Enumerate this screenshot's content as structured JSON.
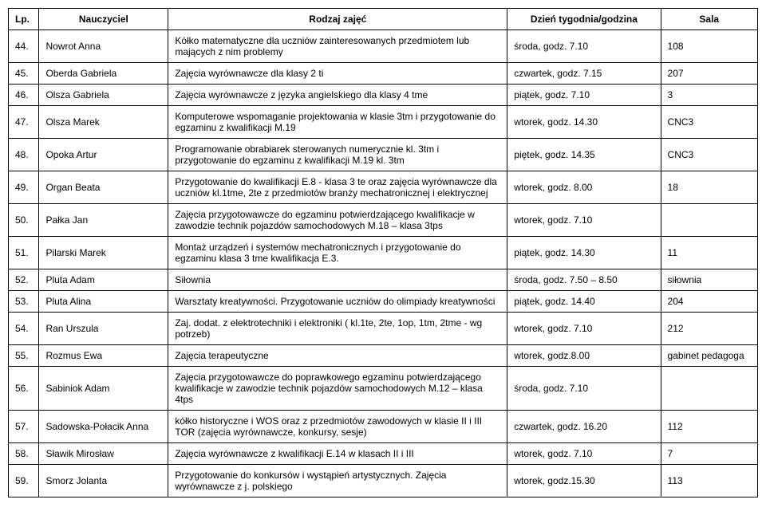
{
  "table": {
    "headers": {
      "lp": "Lp.",
      "teacher": "Nauczyciel",
      "subject": "Rodzaj zajęć",
      "day": "Dzień tygodnia/godzina",
      "room": "Sala"
    },
    "rows": [
      {
        "lp": "44.",
        "teacher": "Nowrot Anna",
        "subject": "Kółko matematyczne dla uczniów zainteresowanych przedmiotem lub mających z nim problemy",
        "day": "środa, godz. 7.10",
        "room": "108"
      },
      {
        "lp": "45.",
        "teacher": "Oberda Gabriela",
        "subject": "Zajęcia  wyrównawcze dla klasy 2 ti",
        "day": "czwartek, godz. 7.15",
        "room": "207"
      },
      {
        "lp": "46.",
        "teacher": "Olsza Gabriela",
        "subject": "Zajęcia  wyrównawcze z języka angielskiego dla klasy 4 tme",
        "day": "piątek, godz. 7.10",
        "room": "3"
      },
      {
        "lp": "47.",
        "teacher": "Olsza Marek",
        "subject": "Komputerowe wspomaganie projektowania w klasie 3tm i przygotowanie do egzaminu z kwalifikacji M.19",
        "day": "wtorek, godz. 14.30",
        "room": "CNC3"
      },
      {
        "lp": "48.",
        "teacher": "Opoka Artur",
        "subject": "Programowanie obrabiarek sterowanych numerycznie kl. 3tm i przygotowanie do egzaminu z kwalifikacji M.19 kl. 3tm",
        "day": "piętek, godz. 14.35",
        "room": "CNC3"
      },
      {
        "lp": "49.",
        "teacher": "Organ Beata",
        "subject": "Przygotowanie do kwalifikacji E.8 -  klasa  3 te oraz zajęcia wyrównawcze dla uczniów kl.1tme, 2te z przedmiotów branży mechatronicznej i elektrycznej",
        "day": "wtorek, godz. 8.00",
        "room": "18"
      },
      {
        "lp": "50.",
        "teacher": "Pałka Jan",
        "subject": "Zajęcia przygotowawcze do egzaminu potwierdzającego kwalifikacje w zawodzie technik pojazdów samochodowych M.18 – klasa 3tps",
        "day": "wtorek, godz. 7.10",
        "room": ""
      },
      {
        "lp": "51.",
        "teacher": "Pilarski Marek",
        "subject": "Montaż urządzeń i systemów mechatronicznych i przygotowanie do egzaminu klasa 3 tme kwalifikacja E.3.",
        "day": "piątek, godz. 14.30",
        "room": "11"
      },
      {
        "lp": "52.",
        "teacher": "Pluta Adam",
        "subject": "Siłownia",
        "day": "środa, godz. 7.50 – 8.50",
        "room": "siłownia"
      },
      {
        "lp": "53.",
        "teacher": "Pluta Alina",
        "subject": "Warsztaty kreatywności. Przygotowanie uczniów do olimpiady kreatywności",
        "day": "piątek, godz. 14.40",
        "room": "204"
      },
      {
        "lp": "54.",
        "teacher": "Ran Urszula",
        "subject": "Zaj. dodat. z elektrotechniki i elektroniki ( kl.1te, 2te, 1op, 1tm, 2tme - wg potrzeb)",
        "day": "wtorek, godz. 7.10",
        "room": "212"
      },
      {
        "lp": "55.",
        "teacher": "Rozmus Ewa",
        "subject": "Zajęcia terapeutyczne",
        "day": "wtorek, godz.8.00",
        "room": "gabinet pedagoga"
      },
      {
        "lp": "56.",
        "teacher": "Sabiniok Adam",
        "subject": "Zajęcia przygotowawcze do poprawkowego egzaminu potwierdzającego kwalifikacje w zawodzie technik pojazdów samochodowych M.12 – klasa 4tps",
        "day": "środa, godz. 7.10",
        "room": ""
      },
      {
        "lp": "57.",
        "teacher": "Sadowska-Połacik Anna",
        "subject": "kółko historyczne i WOS oraz z przedmiotów zawodowych w klasie II i III TOR (zajęcia wyrównawcze, konkursy, sesje)",
        "day": "czwartek, godz. 16.20",
        "room": "112"
      },
      {
        "lp": "58.",
        "teacher": "Sławik Mirosław",
        "subject": "Zajęcia wyrównawcze z kwalifikacji  E.14 w klasach II i III",
        "day": "wtorek, godz. 7.10",
        "room": "7"
      },
      {
        "lp": "59.",
        "teacher": "Smorz Jolanta",
        "subject": "Przygotowanie do konkursów i wystąpień artystycznych. Zajęcia wyrównawcze z j. polskiego",
        "day": "wtorek, godz.15.30",
        "room": "113"
      }
    ]
  }
}
